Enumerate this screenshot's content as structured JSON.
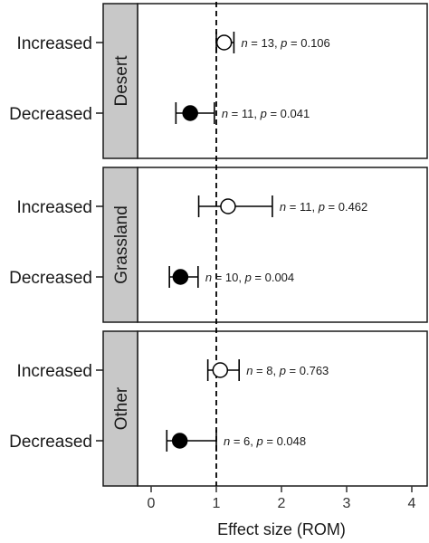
{
  "chart_data": {
    "type": "forest",
    "xlabel": "Effect size (ROM)",
    "xlim": [
      -0.6,
      4.05
    ],
    "xticks": [
      0,
      1,
      2,
      3,
      4
    ],
    "xtick_labels": [
      "0",
      "1",
      "2",
      "3",
      "4"
    ],
    "reference_line": 1,
    "grid": false,
    "strip_color": "#c8c8c8",
    "marker_colors": {
      "Increased": "#ffffff",
      "Decreased": "#000000"
    },
    "panels": [
      {
        "name": "Desert",
        "rows": [
          {
            "category": "Increased",
            "estimate": 1.12,
            "ci_low": 1.0,
            "ci_high": 1.27,
            "annotation": {
              "n": "n",
              "eq1": " = 13, ",
              "p": "p",
              "eq2": " = 0.106"
            }
          },
          {
            "category": "Decreased",
            "estimate": 0.6,
            "ci_low": 0.38,
            "ci_high": 0.97,
            "annotation": {
              "n": "n",
              "eq1": " = 11, ",
              "p": "p",
              "eq2": " = 0.041"
            }
          }
        ]
      },
      {
        "name": "Grassland",
        "rows": [
          {
            "category": "Increased",
            "estimate": 1.18,
            "ci_low": 0.73,
            "ci_high": 1.86,
            "annotation": {
              "n": "n",
              "eq1": " = 11, ",
              "p": "p",
              "eq2": " = 0.462"
            }
          },
          {
            "category": "Decreased",
            "estimate": 0.45,
            "ci_low": 0.28,
            "ci_high": 0.72,
            "annotation": {
              "n": "n",
              "eq1": " = 10, ",
              "p": "p",
              "eq2": " = 0.004"
            }
          }
        ]
      },
      {
        "name": "Other",
        "rows": [
          {
            "category": "Increased",
            "estimate": 1.06,
            "ci_low": 0.87,
            "ci_high": 1.35,
            "annotation": {
              "n": "n",
              "eq1": " = 8, ",
              "p": "p",
              "eq2": " = 0.763"
            }
          },
          {
            "category": "Decreased",
            "estimate": 0.44,
            "ci_low": 0.24,
            "ci_high": 1.0,
            "annotation": {
              "n": "n",
              "eq1": " = 6, ",
              "p": "p",
              "eq2": " = 0.048"
            }
          }
        ]
      }
    ]
  }
}
